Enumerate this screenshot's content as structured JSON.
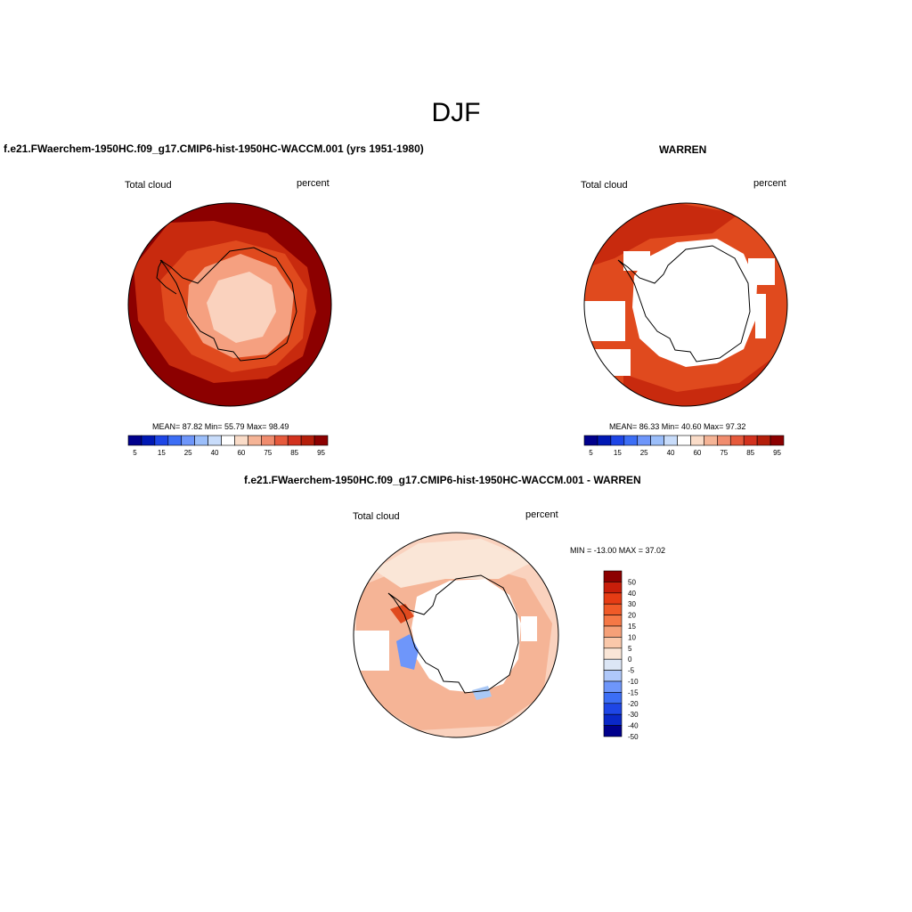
{
  "main_title": "DJF",
  "panels": [
    {
      "title": "f.e21.FWaerchem-1950HC.f09_g17.CMIP6-hist-1950HC-WACCM.001 (yrs 1951-1980)",
      "variable": "Total cloud",
      "units": "percent",
      "stats": "MEAN=  87.82  Min=  55.79  Max=  98.49"
    },
    {
      "title": "WARREN",
      "variable": "Total cloud",
      "units": "percent",
      "stats": "MEAN=  86.33  Min=  40.60  Max=  97.32"
    },
    {
      "title": "f.e21.FWaerchem-1950HC.f09_g17.CMIP6-hist-1950HC-WACCM.001 - WARREN",
      "variable": "Total cloud",
      "units": "percent",
      "stats": "MIN = -13.00 MAX =  37.02"
    }
  ],
  "colorbar_abs": {
    "labels": [
      "5",
      "15",
      "25",
      "40",
      "60",
      "75",
      "85",
      "95"
    ],
    "colors": [
      "#00008c",
      "#0018b4",
      "#1e46e6",
      "#3c6ef5",
      "#6e96fa",
      "#9bbefa",
      "#c8dcfa",
      "#ffffff",
      "#fadcc8",
      "#f5b496",
      "#f08c6e",
      "#e65a3c",
      "#d2321e",
      "#b41e0a",
      "#8c0000"
    ]
  },
  "colorbar_diff": {
    "labels": [
      "50",
      "40",
      "30",
      "20",
      "15",
      "10",
      "5",
      "0",
      "-5",
      "-10",
      "-15",
      "-20",
      "-30",
      "-40",
      "-50"
    ],
    "colors": [
      "#8c0000",
      "#c81e0a",
      "#e63c14",
      "#f05a28",
      "#f57846",
      "#f5a078",
      "#fac8aa",
      "#fae6d7",
      "#dce6f5",
      "#afc8fa",
      "#6e96fa",
      "#3c6ef5",
      "#1e46e6",
      "#0a28c8",
      "#00008c"
    ]
  },
  "map_colors": {
    "abs_high": "#8c0000",
    "abs_mid": "#c82a0e",
    "abs_mid2": "#e04a1e",
    "abs_low": "#f5a080",
    "abs_lower": "#fad2be",
    "diff_pos": "#fad2be",
    "diff_pos2": "#f5b496",
    "diff_pos3": "#fae6d7",
    "diff_neg": "#aac8f5",
    "diff_neg2": "#6e96fa"
  }
}
